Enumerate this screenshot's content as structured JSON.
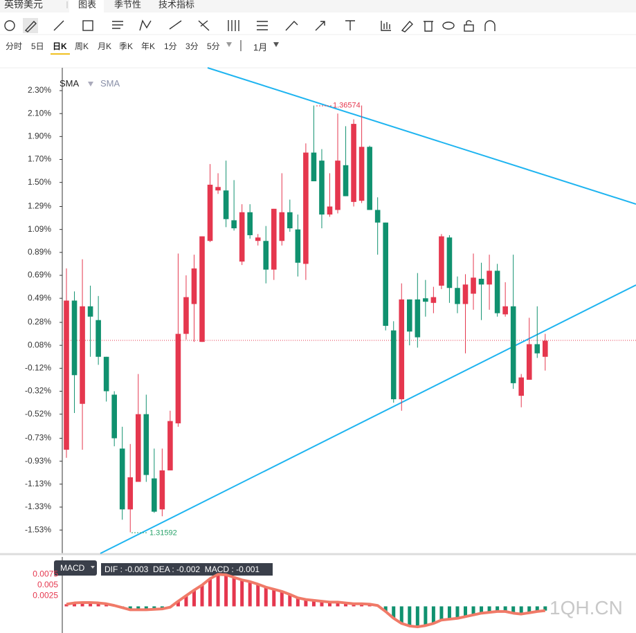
{
  "header": {
    "title": "英镑美元",
    "tabs": [
      "图表",
      "季节性",
      "技术指标"
    ]
  },
  "timeframes": [
    "分时",
    "5日",
    "日K",
    "周K",
    "月K",
    "季K",
    "年K",
    "1分",
    "3分",
    "5分"
  ],
  "active_timeframe": 2,
  "period": "1月",
  "watermark": "1QH.CN",
  "chart_data": [
    {
      "type": "candlestick",
      "legend": [
        "SMA",
        "SMA"
      ],
      "up_color": "#e5374e",
      "down_color": "#10916f",
      "ylim": [
        -1.734,
        2.499
      ],
      "yticks": [
        {
          "value": 2.3,
          "label": "2.30%"
        },
        {
          "value": 2.1,
          "label": "2.10%"
        },
        {
          "value": 1.9,
          "label": "1.90%"
        },
        {
          "value": 1.7,
          "label": "1.70%"
        },
        {
          "value": 1.5,
          "label": "1.50%"
        },
        {
          "value": 1.29,
          "label": "1.29%"
        },
        {
          "value": 1.09,
          "label": "1.09%"
        },
        {
          "value": 0.89,
          "label": "0.89%"
        },
        {
          "value": 0.69,
          "label": "0.69%"
        },
        {
          "value": 0.49,
          "label": "0.49%"
        },
        {
          "value": 0.28,
          "label": "0.28%"
        },
        {
          "value": 0.08,
          "label": "0.08%"
        },
        {
          "value": -0.12,
          "label": "-0.12%"
        },
        {
          "value": -0.32,
          "label": "-0.32%"
        },
        {
          "value": -0.52,
          "label": "-0.52%"
        },
        {
          "value": -0.73,
          "label": "-0.73%"
        },
        {
          "value": -0.93,
          "label": "-0.93%"
        },
        {
          "value": -1.13,
          "label": "-1.13%"
        },
        {
          "value": -1.33,
          "label": "-1.33%"
        },
        {
          "value": -1.53,
          "label": "-1.53%"
        }
      ],
      "open": [
        -0.83,
        0.47,
        -0.43,
        0.42,
        0.3,
        -0.02,
        -0.35,
        -0.82,
        -1.35,
        -1.11,
        -0.52,
        -1.08,
        -1.35,
        -1.01,
        -0.6,
        0.18,
        0.44,
        0.11,
        0.99,
        1.43,
        1.43,
        1.17,
        0.81,
        1.24,
        0.99,
        0.99,
        0.74,
        0.99,
        1.24,
        1.09,
        0.79,
        1.76,
        1.69,
        1.22,
        1.26,
        1.65,
        1.33,
        1.34,
        1.81,
        1.26,
        1.15,
        0.21,
        -0.39,
        0.48,
        0.48,
        0.49,
        0.45,
        0.6,
        1.02,
        0.58,
        0.44,
        0.53,
        0.66,
        0.61,
        0.73,
        0.35,
        0.42,
        -0.36,
        -0.22,
        0.09,
        -0.02
      ],
      "high": [
        0.75,
        0.55,
        0.83,
        0.6,
        0.51,
        -0.02,
        -0.32,
        -0.63,
        -0.78,
        -0.17,
        -0.35,
        -0.82,
        -0.82,
        -0.49,
        0.88,
        0.69,
        0.87,
        1.03,
        1.66,
        1.58,
        1.69,
        1.52,
        1.31,
        1.31,
        1.05,
        1.12,
        1.27,
        1.58,
        1.35,
        1.22,
        1.84,
        2.17,
        1.79,
        1.58,
        2.1,
        1.99,
        2.05,
        2.17,
        1.82,
        1.37,
        1.15,
        0.29,
        0.62,
        0.48,
        0.71,
        0.65,
        0.59,
        1.05,
        1.04,
        0.68,
        0.7,
        0.88,
        0.8,
        0.87,
        0.79,
        0.63,
        0.87,
        -0.17,
        0.32,
        0.42,
        0.18
      ],
      "low": [
        -0.9,
        -0.51,
        -0.83,
        -0.02,
        -0.09,
        -0.41,
        -0.8,
        -1.44,
        -1.55,
        -1.11,
        -1.11,
        -1.38,
        -1.41,
        -1.01,
        -0.63,
        0.13,
        0.11,
        0.11,
        0.98,
        1.4,
        1.11,
        1.08,
        0.78,
        1.01,
        0.95,
        0.62,
        0.65,
        0.95,
        1.07,
        0.68,
        0.65,
        1.51,
        1.1,
        1.2,
        1.23,
        1.38,
        1.29,
        1.32,
        1.26,
        0.87,
        0.21,
        -0.42,
        -0.49,
        0.08,
        0.06,
        0.33,
        0.36,
        0.57,
        0.45,
        0.36,
        0.01,
        0.39,
        0.3,
        0.39,
        0.33,
        0.33,
        -0.3,
        -0.46,
        -0.22,
        -0.03,
        -0.14
      ],
      "close": [
        0.47,
        -0.18,
        0.42,
        0.33,
        -0.02,
        -0.32,
        -0.73,
        -1.35,
        -1.07,
        -0.52,
        -1.05,
        -1.37,
        -1.01,
        -0.58,
        0.18,
        0.5,
        0.75,
        1.03,
        1.48,
        1.46,
        1.18,
        1.1,
        1.24,
        1.04,
        1.02,
        0.74,
        1.27,
        1.24,
        1.1,
        0.8,
        1.76,
        1.51,
        1.22,
        1.29,
        1.69,
        1.38,
        2.01,
        1.81,
        1.26,
        1.15,
        0.25,
        -0.39,
        0.48,
        0.2,
        0.15,
        0.46,
        0.5,
        1.03,
        0.58,
        0.44,
        0.61,
        0.67,
        0.61,
        0.73,
        0.36,
        0.42,
        -0.25,
        -0.2,
        0.09,
        0.01,
        0.12
      ],
      "annotations": [
        {
          "text": "1.36574",
          "color": "#e5374e"
        },
        {
          "text": "1.31592",
          "color": "#2aa36b"
        }
      ]
    },
    {
      "type": "bar",
      "title": "MACD",
      "subtitle": "DIF : -0.003  DEA : -0.002  MACD : -0.001",
      "positive_color": "#e5374e",
      "negative_color": "#10916f",
      "line_color": "#f07a68",
      "ylim": [
        -0.00625,
        0.0116
      ],
      "yticks": [
        0.0075,
        0.005,
        0.0025
      ],
      "values": [
        0.0005,
        0.0008,
        0.0009,
        0.0009,
        0.0008,
        0.0006,
        0.0002,
        -0.0003,
        -0.0008,
        -0.0008,
        -0.0008,
        -0.0007,
        -0.0006,
        -0.0002,
        0.0012,
        0.0025,
        0.0038,
        0.005,
        0.0065,
        0.0075,
        0.0074,
        0.0068,
        0.0062,
        0.0058,
        0.0052,
        0.0045,
        0.004,
        0.0035,
        0.0028,
        0.002,
        0.0016,
        0.0014,
        0.0012,
        0.001,
        0.001,
        0.0008,
        0.0006,
        0.0006,
        0.0005,
        0.0002,
        -0.0012,
        -0.0028,
        -0.004,
        -0.0046,
        -0.0048,
        -0.0045,
        -0.004,
        -0.0032,
        -0.003,
        -0.0028,
        -0.0024,
        -0.002,
        -0.0016,
        -0.0014,
        -0.0012,
        -0.0012,
        -0.0016,
        -0.0018,
        -0.0015,
        -0.0012,
        -0.001
      ]
    }
  ]
}
